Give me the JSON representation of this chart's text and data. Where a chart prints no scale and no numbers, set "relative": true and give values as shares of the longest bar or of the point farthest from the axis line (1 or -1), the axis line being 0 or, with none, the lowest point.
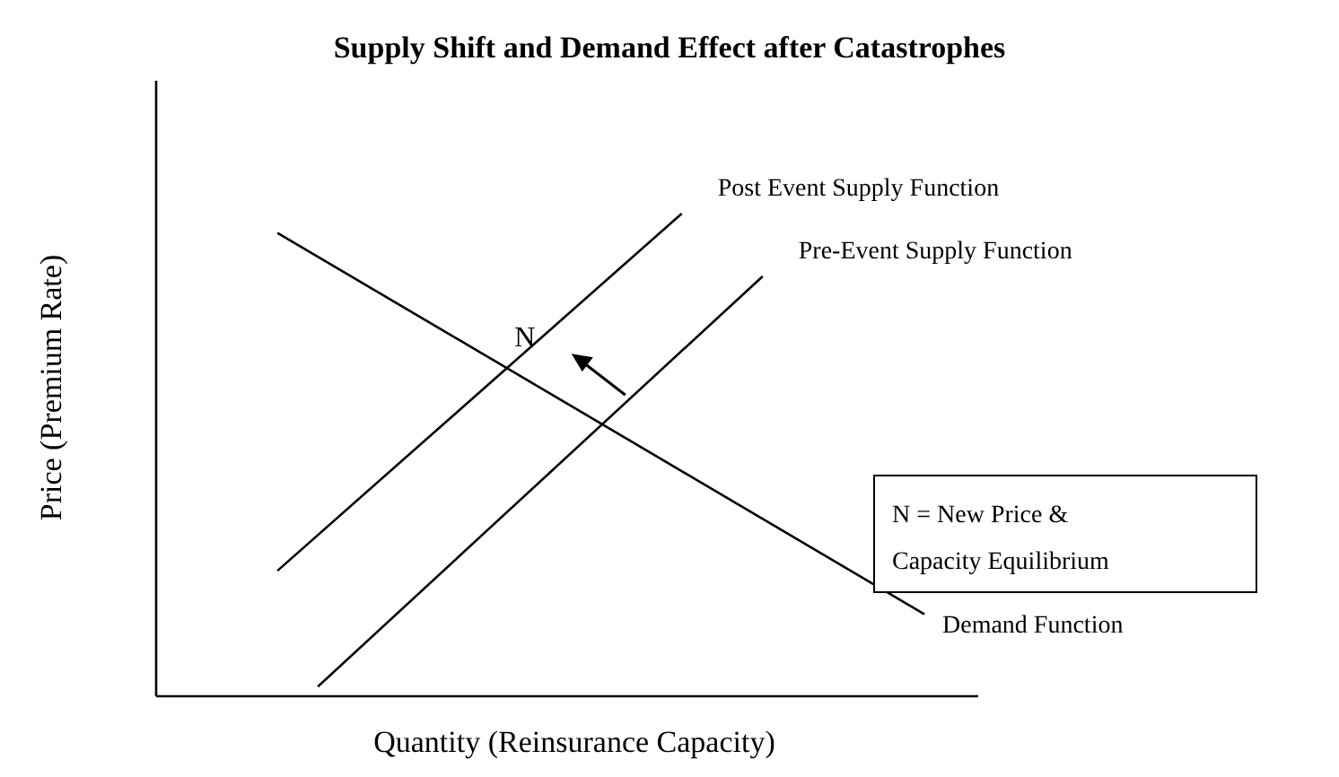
{
  "chart_data": {
    "type": "line",
    "title": "Supply Shift and Demand Effect after Catastrophes",
    "xlabel": "Quantity (Reinsurance Capacity)",
    "ylabel": "Price (Premium Rate)",
    "relative": true,
    "legend": false,
    "grid": false,
    "marker": "none",
    "line_style": "solid",
    "categories": [
      null,
      null,
      null,
      null,
      null,
      null,
      null,
      null,
      null,
      null,
      null,
      null,
      null,
      null,
      null,
      null,
      null,
      null,
      null,
      null
    ],
    "series": [
      {
        "name": "Post Event Supply Function",
        "color": "#000000",
        "values": [
          null,
          null,
          null,
          0.26,
          null,
          null,
          null,
          null,
          null,
          null,
          null,
          null,
          null,
          1,
          null,
          null,
          null,
          null,
          null,
          null
        ]
      },
      {
        "name": "Pre-Event Supply Function",
        "color": "#000000",
        "values": [
          null,
          null,
          null,
          null,
          0.02,
          null,
          null,
          null,
          null,
          null,
          null,
          null,
          null,
          null,
          null,
          0.87,
          null,
          null,
          null,
          null
        ]
      },
      {
        "name": "Demand Function",
        "color": "#000000",
        "values": [
          null,
          null,
          null,
          0.96,
          null,
          null,
          null,
          null,
          null,
          null,
          null,
          null,
          null,
          null,
          null,
          null,
          null,
          null,
          null,
          0.17
        ]
      }
    ],
    "annotations": [
      "N",
      "N = New Price & Capacity Equilibrium"
    ]
  }
}
